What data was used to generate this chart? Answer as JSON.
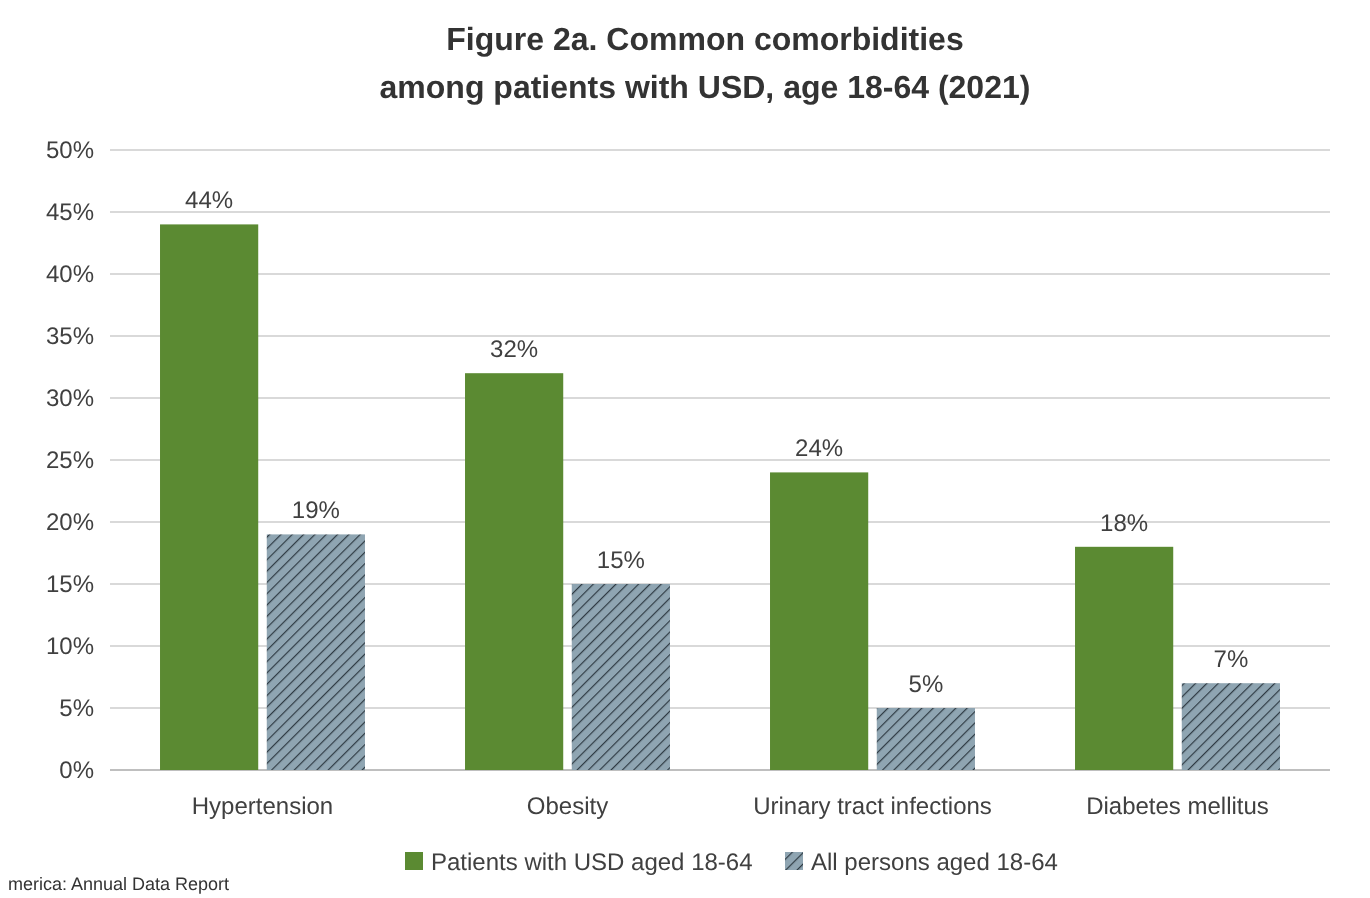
{
  "chart_data": {
    "type": "bar",
    "title": "Figure 2a. Common comorbidities\namong patients with USD, age 18-64 (2021)",
    "categories": [
      "Hypertension",
      "Obesity",
      "Urinary tract infections",
      "Diabetes mellitus"
    ],
    "series": [
      {
        "name": "Patients with USD aged 18-64",
        "color": "#5b8a32",
        "values": [
          44,
          32,
          24,
          18
        ],
        "value_labels": [
          "44%",
          "32%",
          "24%",
          "18%"
        ]
      },
      {
        "name": "All persons aged 18-64",
        "color": "#8fa5b2",
        "values": [
          19,
          15,
          5,
          7
        ],
        "value_labels": [
          "19%",
          "15%",
          "5%",
          "7%"
        ]
      }
    ],
    "ylim": [
      0,
      50
    ],
    "yticks": [
      {
        "value": 0,
        "label": "0%"
      },
      {
        "value": 5,
        "label": "5%"
      },
      {
        "value": 10,
        "label": "10%"
      },
      {
        "value": 15,
        "label": "15%"
      },
      {
        "value": 20,
        "label": "20%"
      },
      {
        "value": 25,
        "label": "25%"
      },
      {
        "value": 30,
        "label": "30%"
      },
      {
        "value": 35,
        "label": "35%"
      },
      {
        "value": 40,
        "label": "40%"
      },
      {
        "value": 45,
        "label": "45%"
      },
      {
        "value": 50,
        "label": "50%"
      }
    ],
    "grid": "y",
    "legend": "bottom",
    "annotations": [
      "merica: Annual Data Report"
    ]
  }
}
